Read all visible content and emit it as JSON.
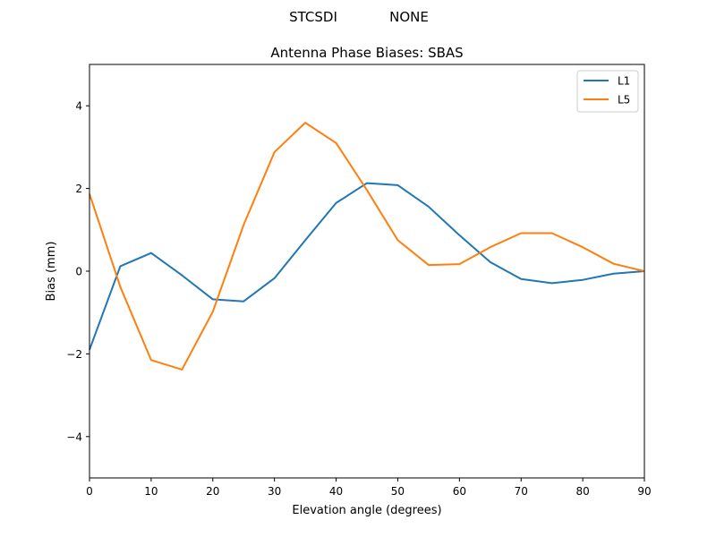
{
  "suptitle": {
    "left": "STCSDI",
    "right": "NONE"
  },
  "chart_data": {
    "type": "line",
    "title": "Antenna Phase Biases: SBAS",
    "xlabel": "Elevation angle (degrees)",
    "ylabel": "Bias (mm)",
    "xlim": [
      0,
      90
    ],
    "ylim": [
      -5,
      5
    ],
    "xticks": [
      0,
      10,
      20,
      30,
      40,
      50,
      60,
      70,
      80,
      90
    ],
    "yticks": [
      -4,
      -2,
      0,
      2,
      4
    ],
    "grid": false,
    "legend_position": "upper right",
    "x": [
      0,
      5,
      10,
      15,
      20,
      25,
      30,
      35,
      40,
      45,
      50,
      55,
      60,
      65,
      70,
      75,
      80,
      85,
      90
    ],
    "series": [
      {
        "name": "L1",
        "color": "#1f77b4",
        "values": [
          -1.9,
          0.12,
          0.44,
          -0.1,
          -0.68,
          -0.73,
          -0.17,
          0.75,
          1.65,
          2.13,
          2.08,
          1.56,
          0.87,
          0.22,
          -0.19,
          -0.29,
          -0.21,
          -0.06,
          0.0
        ]
      },
      {
        "name": "L5",
        "color": "#ff7f0e",
        "values": [
          1.87,
          -0.38,
          -2.15,
          -2.38,
          -0.98,
          1.12,
          2.88,
          3.59,
          3.1,
          1.96,
          0.75,
          0.15,
          0.17,
          0.58,
          0.92,
          0.92,
          0.58,
          0.18,
          0.0
        ]
      }
    ]
  }
}
